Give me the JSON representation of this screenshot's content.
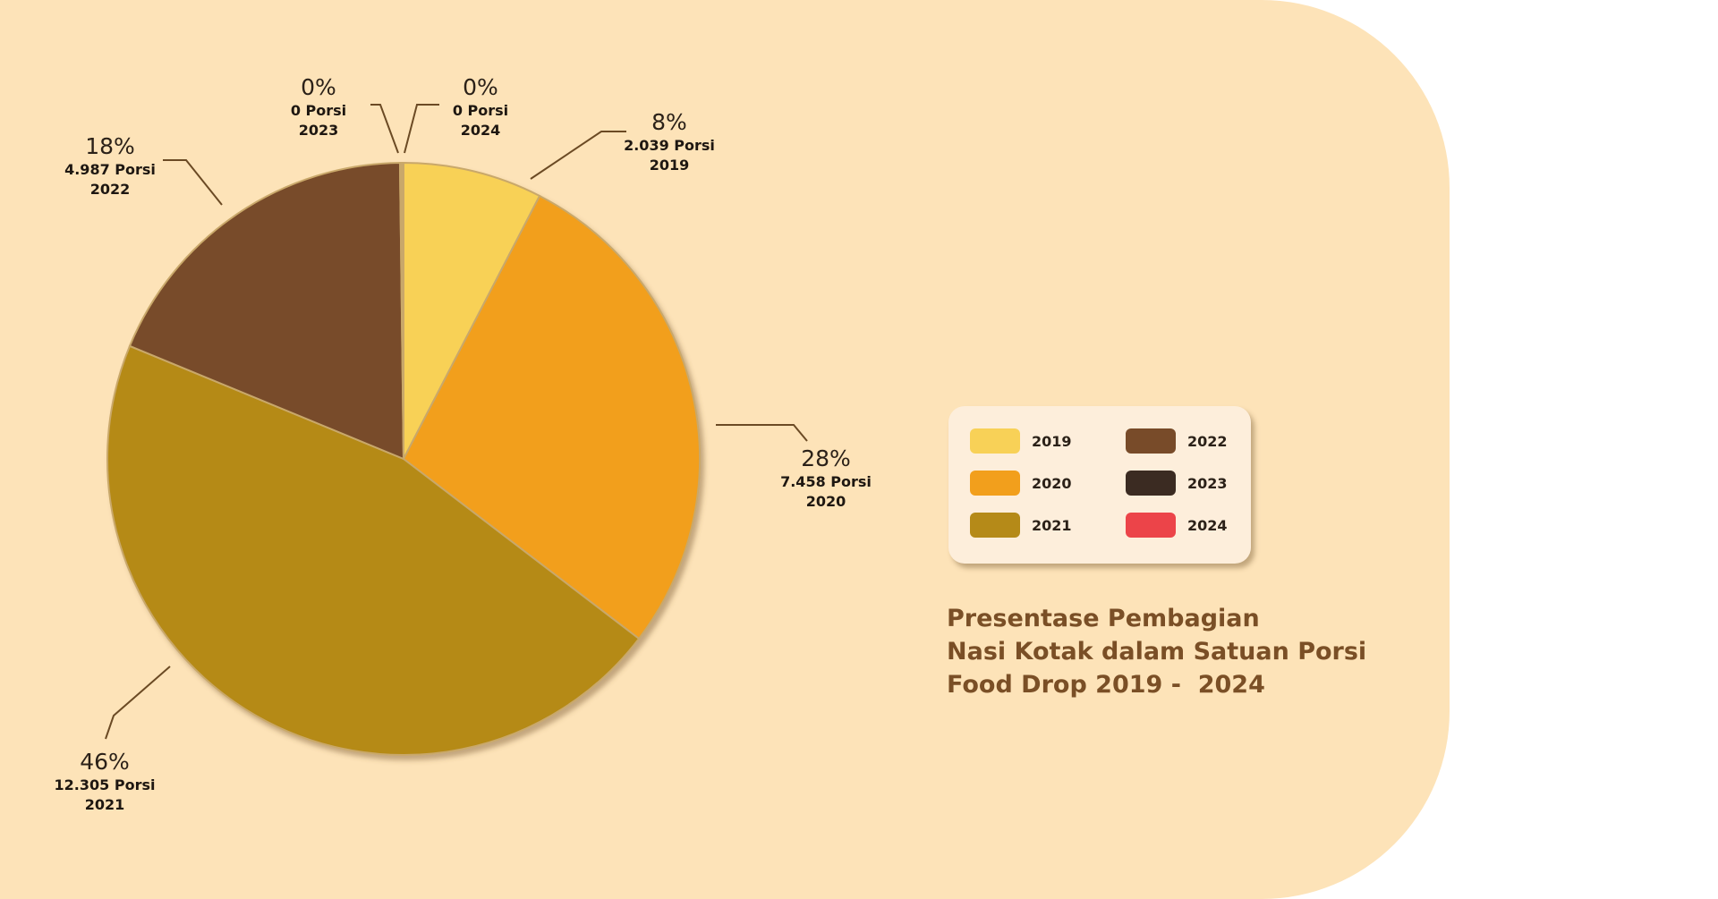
{
  "chart_data": {
    "type": "pie",
    "title_lines": [
      "Presentase Pembagian",
      "Nasi Kotak dalam Satuan Porsi",
      "Food Drop 2019 -  2024"
    ],
    "slices": [
      {
        "year": "2019",
        "value": 2039,
        "percent_label": "8%",
        "porsi_label": "2.039 Porsi",
        "color": "#f8d157"
      },
      {
        "year": "2020",
        "value": 7458,
        "percent_label": "28%",
        "porsi_label": "7.458 Porsi",
        "color": "#f29f1c"
      },
      {
        "year": "2021",
        "value": 12305,
        "percent_label": "46%",
        "porsi_label": "12.305 Porsi",
        "color": "#b58a18"
      },
      {
        "year": "2022",
        "value": 4987,
        "percent_label": "18%",
        "porsi_label": "4.987 Porsi",
        "color": "#784b29"
      },
      {
        "year": "2023",
        "value": 0,
        "percent_label": "0%",
        "porsi_label": "0 Porsi",
        "color": "#3b2b22"
      },
      {
        "year": "2024",
        "value": 0,
        "percent_label": "0%",
        "porsi_label": "0 Porsi",
        "color": "#ec4449"
      }
    ],
    "legend": [
      {
        "label": "2019",
        "color": "#f8d157"
      },
      {
        "label": "2020",
        "color": "#f29f1c"
      },
      {
        "label": "2021",
        "color": "#b58a18"
      },
      {
        "label": "2022",
        "color": "#784b29"
      },
      {
        "label": "2023",
        "color": "#3b2b22"
      },
      {
        "label": "2024",
        "color": "#ec4449"
      }
    ],
    "legend_placement": "right"
  }
}
